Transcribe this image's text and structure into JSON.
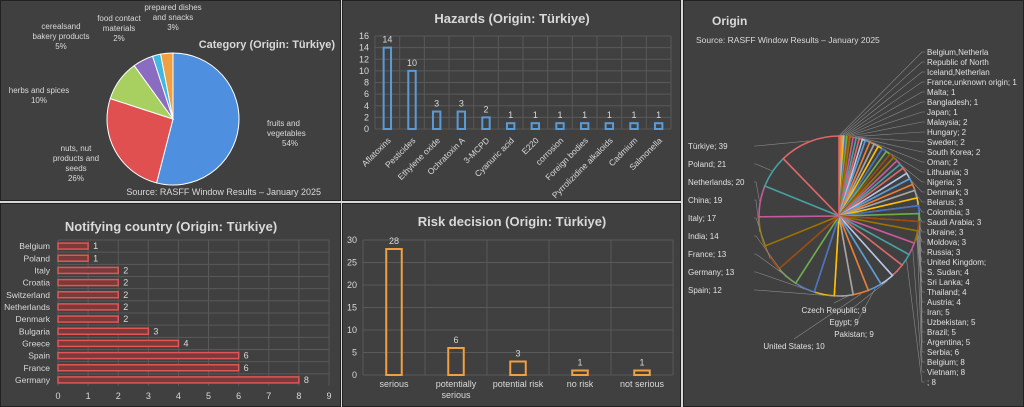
{
  "chart_data": [
    {
      "id": "category",
      "type": "pie",
      "title": "Category (Origin: Türkiye)",
      "source": "Source: RASFF Window Results – January 2025",
      "slices": [
        {
          "label": "fruits and vegetables",
          "value": 54,
          "display": "54%",
          "color": "#4f8fe0"
        },
        {
          "label": "nuts, nut products and seeds",
          "value": 26,
          "display": "26%",
          "color": "#e05050"
        },
        {
          "label": "herbs and spices",
          "value": 10,
          "display": "10%",
          "color": "#a8d060"
        },
        {
          "label": "cereals and bakery products",
          "value": 5,
          "display": "5%",
          "color": "#8a6cc0"
        },
        {
          "label": "food contact materials",
          "value": 2,
          "display": "2%",
          "color": "#40b8e0"
        },
        {
          "label": "prepared dishes and snacks",
          "value": 3,
          "display": "3%",
          "color": "#f0a040"
        }
      ]
    },
    {
      "id": "hazards",
      "type": "bar",
      "title": "Hazards (Origin: Türkiye)",
      "categories": [
        "Aflatoxins",
        "Pesticides",
        "Ethylene oxide",
        "Ochratoxin A",
        "3-MCPD",
        "Cyanuric acid",
        "E220",
        "corrosion",
        "Foreign bodies",
        "Pyrrolizidine alkaloids",
        "Cadmium",
        "Salmonella"
      ],
      "values": [
        14,
        10,
        3,
        3,
        2,
        1,
        1,
        1,
        1,
        1,
        1,
        1
      ],
      "ylim": [
        0,
        16
      ],
      "yticks": [
        0,
        2,
        4,
        6,
        8,
        10,
        12,
        14,
        16
      ],
      "color": "#5b9bd5",
      "grid": true
    },
    {
      "id": "notifying",
      "type": "bar",
      "orientation": "horizontal",
      "title": "Notifying country (Origin: Türkiye)",
      "categories": [
        "Belgium",
        "Poland",
        "Italy",
        "Croatia",
        "Switzerland",
        "Netherlands",
        "Denmark",
        "Bulgaria",
        "Greece",
        "Spain",
        "France",
        "Germany"
      ],
      "values": [
        1,
        1,
        2,
        2,
        2,
        2,
        2,
        3,
        4,
        6,
        6,
        8
      ],
      "xlim": [
        0,
        9
      ],
      "xticks": [
        0,
        1,
        2,
        3,
        4,
        5,
        6,
        7,
        8,
        9
      ],
      "color": "#e05555",
      "grid": true
    },
    {
      "id": "risk",
      "type": "bar",
      "title": "Risk decision (Origin: Türkiye)",
      "categories": [
        "serious",
        "potentially serious",
        "potential risk",
        "no risk",
        "not serious"
      ],
      "values": [
        28,
        6,
        3,
        1,
        1
      ],
      "ylim": [
        0,
        30
      ],
      "yticks": [
        0,
        5,
        10,
        15,
        20,
        25,
        30
      ],
      "color": "#f0a040",
      "grid": true
    },
    {
      "id": "origin",
      "type": "pie",
      "title": "Origin",
      "source": "Source: RASFF Window Results – January 2025",
      "slices": [
        {
          "label": "Belgium,Netherla",
          "value": 1
        },
        {
          "label": "Republic of North",
          "value": 1
        },
        {
          "label": "Iceland,Netherlan",
          "value": 1
        },
        {
          "label": "France,unknown origin; 1",
          "value": 1
        },
        {
          "label": "Malta; 1",
          "value": 1
        },
        {
          "label": "Bangladesh; 1",
          "value": 1
        },
        {
          "label": "Japan; 1",
          "value": 1
        },
        {
          "label": "Malaysia; 2",
          "value": 2
        },
        {
          "label": "Hungary; 2",
          "value": 2
        },
        {
          "label": "Sweden; 2",
          "value": 2
        },
        {
          "label": "South Korea; 2",
          "value": 2
        },
        {
          "label": "Oman; 2",
          "value": 2
        },
        {
          "label": "Lithuania; 3",
          "value": 3
        },
        {
          "label": "Nigeria; 3",
          "value": 3
        },
        {
          "label": "Denmark; 3",
          "value": 3
        },
        {
          "label": "Belarus; 3",
          "value": 3
        },
        {
          "label": "Colombia; 3",
          "value": 3
        },
        {
          "label": "Saudi Arabia; 3",
          "value": 3
        },
        {
          "label": "Ukraine; 3",
          "value": 3
        },
        {
          "label": "Moldova; 3",
          "value": 3
        },
        {
          "label": "Russia; 3",
          "value": 3
        },
        {
          "label": "United Kingdom;",
          "value": 3
        },
        {
          "label": "S. Sudan; 4",
          "value": 4
        },
        {
          "label": "Sri Lanka; 4",
          "value": 4
        },
        {
          "label": "Thailand; 4",
          "value": 4
        },
        {
          "label": "Austria; 4",
          "value": 4
        },
        {
          "label": "Iran; 5",
          "value": 5
        },
        {
          "label": "Uzbekistan; 5",
          "value": 5
        },
        {
          "label": "Brazil; 5",
          "value": 5
        },
        {
          "label": "Argentina; 5",
          "value": 5
        },
        {
          "label": "Serbia; 6",
          "value": 6
        },
        {
          "label": "Belgium; 8",
          "value": 8
        },
        {
          "label": "Vietnam; 8",
          "value": 8
        },
        {
          "label": "; 8",
          "value": 8
        },
        {
          "label": "Czech Republic; 9",
          "value": 9
        },
        {
          "label": "Egypt; 9",
          "value": 9
        },
        {
          "label": "Pakistan; 9",
          "value": 9
        },
        {
          "label": "United States; 10",
          "value": 10
        },
        {
          "label": "Spain; 12",
          "value": 12
        },
        {
          "label": "Germany; 13",
          "value": 13
        },
        {
          "label": "France; 13",
          "value": 13
        },
        {
          "label": "India; 14",
          "value": 14
        },
        {
          "label": "Italy; 17",
          "value": 17
        },
        {
          "label": "China; 19",
          "value": 19
        },
        {
          "label": "Netherlands; 20",
          "value": 20
        },
        {
          "label": "Poland; 21",
          "value": 21
        },
        {
          "label": "Türkiye; 39",
          "value": 39
        }
      ]
    }
  ],
  "colors": {
    "panel_bg": "#404040",
    "text": "#d9d9d9",
    "grid": "#595959",
    "palette": [
      "#5b9bd5",
      "#ed7d31",
      "#a5a5a5",
      "#ffc000",
      "#4472c4",
      "#70ad47",
      "#9e480e",
      "#997300",
      "#c55a9e",
      "#43a2a2",
      "#e06666",
      "#b4c7e7"
    ]
  }
}
